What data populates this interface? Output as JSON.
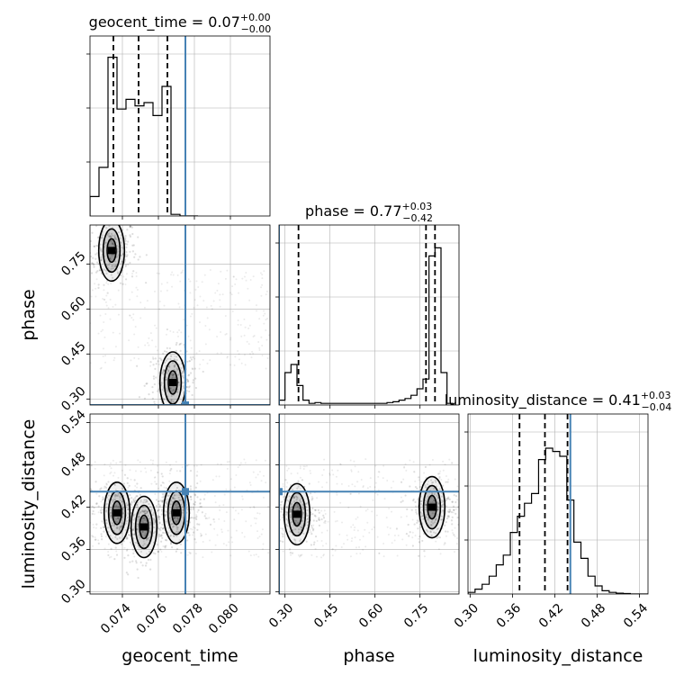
{
  "figure": {
    "type": "corner",
    "truth_color": "#4682b4",
    "line_color": "#000000",
    "grid_color": "#b0b0b0"
  },
  "params": [
    {
      "name": "geocent_time",
      "axis_label": "geocent_time",
      "range": [
        0.0722,
        0.0822
      ],
      "ticks": [
        0.074,
        0.076,
        0.078,
        0.08
      ],
      "tick_labels": [
        "0.074",
        "0.076",
        "0.078",
        "0.080"
      ],
      "truth": 0.0775,
      "quantiles": [
        0.0735,
        0.0749,
        0.0765
      ],
      "title_main": "geocent_time = 0.07",
      "title_sup": "+0.00",
      "title_sub": "−0.00"
    },
    {
      "name": "phase",
      "axis_label": "phase",
      "range": [
        0.28,
        0.88
      ],
      "ticks": [
        0.3,
        0.45,
        0.6,
        0.75
      ],
      "tick_labels": [
        "0.30",
        "0.45",
        "0.60",
        "0.75"
      ],
      "truth": 0.28,
      "quantiles": [
        0.345,
        0.77,
        0.8
      ],
      "title_main": "phase = 0.77",
      "title_sup": "+0.03",
      "title_sub": "−0.42"
    },
    {
      "name": "luminosity_distance",
      "axis_label": "luminosity_distance",
      "range": [
        0.297,
        0.552
      ],
      "ticks": [
        0.3,
        0.36,
        0.42,
        0.48,
        0.54
      ],
      "tick_labels": [
        "0.30",
        "0.36",
        "0.42",
        "0.48",
        "0.54"
      ],
      "truth": 0.442,
      "quantiles": [
        0.37,
        0.406,
        0.438
      ],
      "title_main": "luminosity_distance = 0.41",
      "title_sup": "+0.03",
      "title_sub": "−0.04"
    }
  ],
  "chart_data": [
    {
      "type": "bar",
      "panel": "geocent_time-histogram",
      "x": [
        0.0722,
        0.0727,
        0.0732,
        0.0737,
        0.0742,
        0.0747,
        0.0752,
        0.0757,
        0.0762,
        0.0767,
        0.0772,
        0.0777
      ],
      "values": [
        0.12,
        0.3,
        0.98,
        0.66,
        0.72,
        0.68,
        0.7,
        0.62,
        0.8,
        0.01,
        0.0,
        0.0
      ],
      "truth": 0.0775
    },
    {
      "type": "bar",
      "panel": "phase-histogram",
      "x": [
        0.28,
        0.3,
        0.32,
        0.34,
        0.36,
        0.38,
        0.4,
        0.42,
        0.44,
        0.46,
        0.48,
        0.5,
        0.52,
        0.54,
        0.56,
        0.58,
        0.6,
        0.62,
        0.64,
        0.66,
        0.68,
        0.7,
        0.72,
        0.74,
        0.76,
        0.78,
        0.8,
        0.82,
        0.84
      ],
      "values": [
        0.03,
        0.2,
        0.25,
        0.12,
        0.03,
        0.01,
        0.015,
        0.01,
        0.01,
        0.01,
        0.01,
        0.01,
        0.01,
        0.01,
        0.01,
        0.01,
        0.01,
        0.01,
        0.015,
        0.02,
        0.03,
        0.04,
        0.06,
        0.1,
        0.16,
        0.92,
        0.97,
        0.2,
        0.01
      ],
      "truth": 0.28
    },
    {
      "type": "bar",
      "panel": "luminosity_distance-histogram",
      "x": [
        0.297,
        0.307,
        0.317,
        0.327,
        0.337,
        0.347,
        0.357,
        0.367,
        0.377,
        0.387,
        0.397,
        0.407,
        0.417,
        0.427,
        0.437,
        0.447,
        0.457,
        0.467,
        0.477,
        0.487,
        0.497,
        0.507,
        0.517,
        0.527,
        0.537,
        0.547
      ],
      "values": [
        0.01,
        0.03,
        0.06,
        0.11,
        0.18,
        0.24,
        0.38,
        0.48,
        0.56,
        0.62,
        0.83,
        0.9,
        0.88,
        0.85,
        0.58,
        0.32,
        0.22,
        0.11,
        0.05,
        0.02,
        0.01,
        0.005,
        0.003,
        0.0,
        0.0,
        0.0
      ],
      "truth": 0.442
    },
    {
      "type": "scatter",
      "panel": "phase-vs-geocent_time",
      "x_param": "geocent_time",
      "y_param": "phase",
      "modes": [
        {
          "x": 0.0734,
          "y": 0.795
        },
        {
          "x": 0.0768,
          "y": 0.355
        }
      ],
      "truth": {
        "x": 0.0775,
        "y": 0.28
      }
    },
    {
      "type": "scatter",
      "panel": "luminosity_distance-vs-geocent_time",
      "x_param": "geocent_time",
      "y_param": "luminosity_distance",
      "modes": [
        {
          "x": 0.0737,
          "y": 0.412
        },
        {
          "x": 0.0752,
          "y": 0.392
        },
        {
          "x": 0.077,
          "y": 0.412
        }
      ],
      "truth": {
        "x": 0.0775,
        "y": 0.442
      }
    },
    {
      "type": "scatter",
      "panel": "luminosity_distance-vs-phase",
      "x_param": "phase",
      "y_param": "luminosity_distance",
      "modes": [
        {
          "x": 0.34,
          "y": 0.41
        },
        {
          "x": 0.79,
          "y": 0.42
        }
      ],
      "truth": {
        "x": 0.28,
        "y": 0.442
      }
    }
  ]
}
